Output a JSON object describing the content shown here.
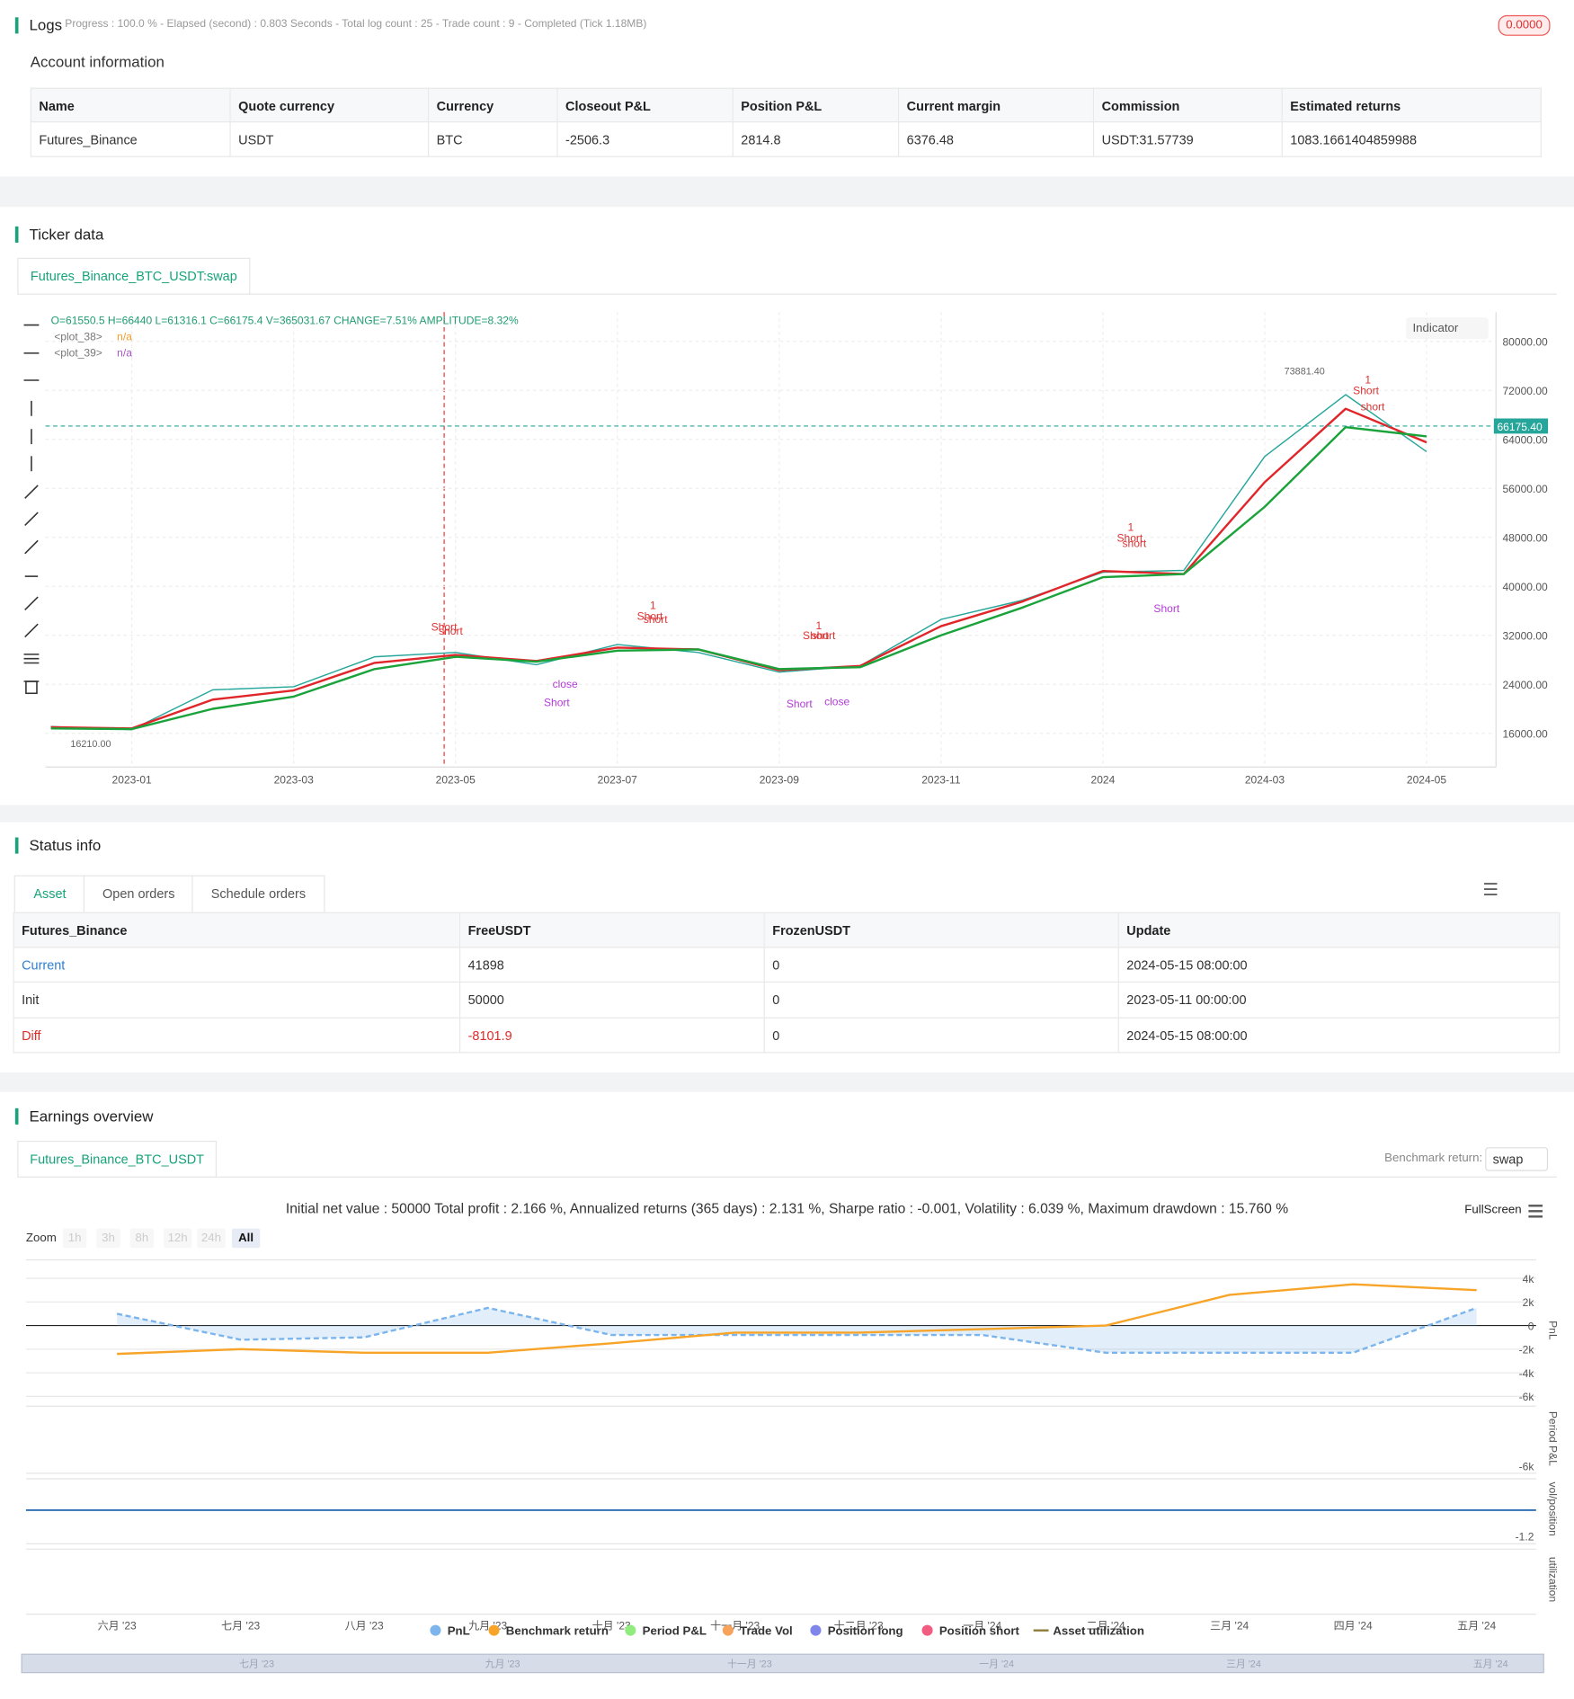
{
  "logs": {
    "title": "Logs",
    "status": "Progress : 100.0 % - Elapsed (second) : 0.803  Seconds - Total log count : 25 - Trade count : 9 - Completed (Tick 1.18MB)",
    "badge": "0.0000"
  },
  "account": {
    "title": "Account information",
    "columns": [
      "Name",
      "Quote currency",
      "Currency",
      "Closeout P&L",
      "Position P&L",
      "Current margin",
      "Commission",
      "Estimated returns"
    ],
    "rows": [
      [
        "Futures_Binance",
        "USDT",
        "BTC",
        "-2506.3",
        "2814.8",
        "6376.48",
        "USDT:31.57739",
        "1083.1661404859988"
      ]
    ]
  },
  "ticker": {
    "title": "Ticker data",
    "tab": "Futures_Binance_BTC_USDT:swap",
    "ohlc": "O=61550.5 H=66440 L=61316.1 C=66175.4 V=365031.67 CHANGE=7.51% AMPLITUDE=8.32%",
    "legend": [
      {
        "name": "<plot_38>",
        "value": "n/a",
        "color": "#f59d2a"
      },
      {
        "name": "<plot_39>",
        "value": "n/a",
        "color": "#a855c8"
      }
    ],
    "indicator_button": "Indicator",
    "trade_labels": [
      "Short",
      "short",
      "1",
      "Short",
      "short",
      "close",
      "Short",
      "1",
      "Short",
      "short",
      "Short",
      "close",
      "1",
      "Short",
      "short",
      "Short",
      "1",
      "Short",
      "short"
    ]
  },
  "status": {
    "title": "Status info",
    "tabs": [
      "Asset",
      "Open orders",
      "Schedule orders"
    ],
    "columns": [
      "Futures_Binance",
      "FreeUSDT",
      "FrozenUSDT",
      "Update"
    ],
    "rows": [
      [
        "Current",
        "41898",
        "0",
        "2024-05-15 08:00:00"
      ],
      [
        "Init",
        "50000",
        "0",
        "2023-05-11 00:00:00"
      ],
      [
        "Diff",
        "-8101.9",
        "0",
        "2024-05-15 08:00:00"
      ]
    ]
  },
  "earnings": {
    "title": "Earnings overview",
    "tab": "Futures_Binance_BTC_USDT",
    "benchmark_label": "Benchmark return:",
    "benchmark_value": "swap",
    "summary": "Initial net value : 50000 Total profit : 2.166 %, Annualized returns (365 days) : 2.131 %, Sharpe ratio : -0.001, Volatility : 6.039 %, Maximum drawdown : 15.760 %",
    "zoom_label": "Zoom",
    "zoom_buttons": [
      "1h",
      "3h",
      "8h",
      "12h",
      "24h",
      "All"
    ],
    "fullscreen": "FullScreen",
    "axis_titles": [
      "PnL",
      "Period P&L",
      "vol/position",
      "utilization"
    ],
    "period_tick": "-6k",
    "vol_tick": "-1.2",
    "navigator_labels": [
      "七月 '23",
      "九月 '23",
      "十一月 '23",
      "一月 '24",
      "三月 '24",
      "五月 '24"
    ]
  },
  "chart_data": [
    {
      "type": "line",
      "x": [
        "2022-12",
        "2023-01",
        "2023-02",
        "2023-03",
        "2023-04",
        "2023-05",
        "2023-06",
        "2023-07",
        "2023-08",
        "2023-09",
        "2023-10",
        "2023-11",
        "2023-12",
        "2024-01",
        "2024-02",
        "2024-03",
        "2024-04",
        "2024-05"
      ],
      "series": [
        {
          "color": "#26a69a",
          "values": [
            17100,
            16600,
            23100,
            23600,
            28500,
            29200,
            27200,
            30500,
            29200,
            26000,
            27000,
            34600,
            37700,
            42300,
            42600,
            61200,
            71300,
            62000
          ]
        },
        {
          "color": "#e0262a",
          "values": [
            17000,
            16800,
            21500,
            23000,
            27500,
            28800,
            27800,
            30000,
            29700,
            26300,
            27000,
            33500,
            37500,
            42500,
            42000,
            57000,
            69000,
            63500
          ]
        },
        {
          "color": "#1aa33a",
          "values": [
            16800,
            16700,
            20000,
            22000,
            26500,
            28500,
            27700,
            29500,
            29700,
            26500,
            26800,
            32000,
            36500,
            41500,
            42000,
            53000,
            66000,
            64500
          ]
        }
      ],
      "ylim": [
        10500,
        84800
      ],
      "yticks": [
        {
          "value": 80000,
          "label": "80000.00"
        },
        {
          "value": 72000,
          "label": "72000.00"
        },
        {
          "value": 64000,
          "label": "64000.00"
        },
        {
          "value": 56000,
          "label": "56000.00"
        },
        {
          "value": 48000,
          "label": "48000.00"
        },
        {
          "value": 40000,
          "label": "40000.00"
        },
        {
          "value": 32000,
          "label": "32000.00"
        },
        {
          "value": 24000,
          "label": "24000.00"
        },
        {
          "value": 16000,
          "label": "16000.00"
        }
      ],
      "xticks": [
        "2023-01",
        "2023-03",
        "2023-05",
        "2023-07",
        "2023-09",
        "2023-11",
        "2024",
        "2024-03",
        "2024-05"
      ],
      "last_price": {
        "value": 66175.4,
        "label": "66175.40"
      },
      "extremes": [
        {
          "x": "2024-03",
          "value": 73881.4,
          "label": "73881.40"
        },
        {
          "x": "2022-12",
          "value": 16210,
          "label": "16210.00"
        }
      ],
      "grid": true
    },
    {
      "type": "line",
      "categories": [
        "六月 '23",
        "七月 '23",
        "八月 '23",
        "九月 '23",
        "十月 '23",
        "十一月 '23",
        "十二月 '23",
        "一月 '24",
        "二月 '24",
        "三月 '24",
        "四月 '24",
        "五月 '24"
      ],
      "series": [
        {
          "name": "PnL",
          "color": "#7cb5ec",
          "values": [
            1000,
            -1200,
            -1000,
            1500,
            -800,
            -800,
            -800,
            -800,
            -2300,
            -2300,
            -2300,
            1500
          ]
        },
        {
          "name": "Benchmark return",
          "color": "#f7a428",
          "values": [
            -2400,
            -2000,
            -2300,
            -2300,
            -1500,
            -600,
            -600,
            -300,
            0,
            2600,
            3500,
            3000
          ]
        }
      ],
      "legend": [
        {
          "name": "Period P&L",
          "color": "#90ed7d"
        },
        {
          "name": "Trade Vol",
          "color": "#f7a35c"
        },
        {
          "name": "Position long",
          "color": "#8085e9"
        },
        {
          "name": "Position short",
          "color": "#f15c80"
        },
        {
          "name": "Asset utilization",
          "color": "#8d7b3a"
        }
      ],
      "ylim": [
        -6550,
        5560
      ],
      "yticks": [
        {
          "value": 4000,
          "label": "4k"
        },
        {
          "value": 2000,
          "label": "2k"
        },
        0,
        {
          "value": -2000,
          "label": "-2k"
        },
        {
          "value": -4000,
          "label": "-4k"
        },
        {
          "value": -6000,
          "label": "-6k"
        }
      ],
      "grid": true
    }
  ]
}
